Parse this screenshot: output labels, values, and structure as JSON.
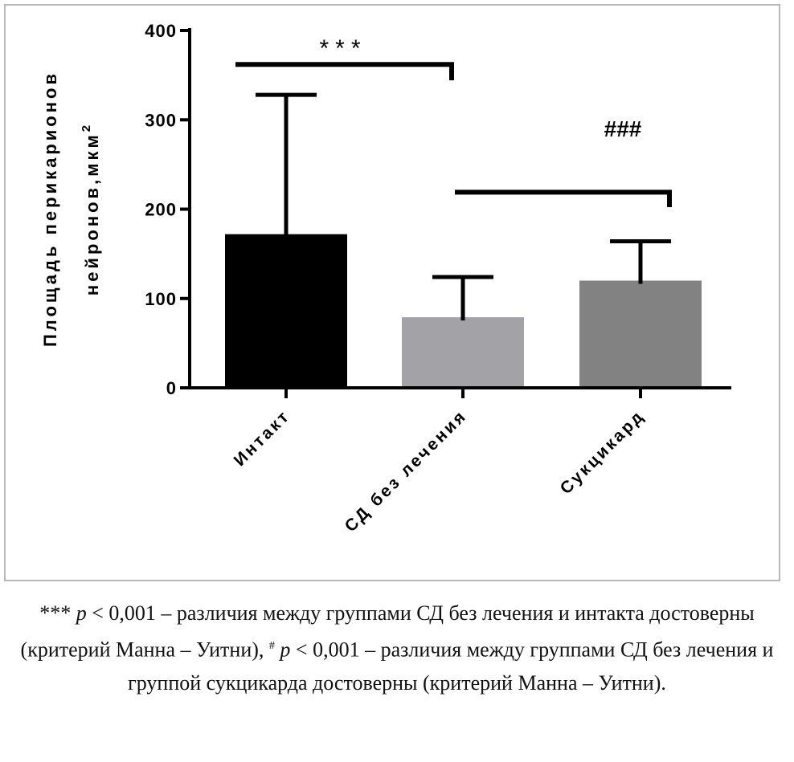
{
  "chart_data": {
    "type": "bar",
    "categories": [
      "Интакт",
      "СД без лечения",
      "Сукцикард"
    ],
    "values": [
      172,
      79,
      120
    ],
    "error_upper": [
      328,
      124,
      164
    ],
    "colors": [
      "#000000",
      "#a3a3a7",
      "#828282"
    ],
    "ylabel_line1": "Площадь перикарионов",
    "ylabel_line2": "нейронов,мкм",
    "ylabel_sup": "2",
    "ylim": [
      0,
      400
    ],
    "yticks": [
      "0",
      "100",
      "200",
      "300",
      "400"
    ],
    "grid": false,
    "annotations": [
      {
        "label": "***",
        "from": "Интакт",
        "to": "СД без лечения",
        "y": 362
      },
      {
        "label": "###",
        "from": "СД без лечения",
        "to": "Сукцикард",
        "y": 219
      }
    ]
  },
  "caption": {
    "part1": "*** ",
    "p1": "p",
    "part2": " < 0,001 – различия между группами СД без лечения и интакта достоверны (критерий Манна – Уитни), ",
    "hash": "#",
    "p2": "p",
    "part3": " < 0,001 – различия между группами СД без лечения и группой сукцикарда достоверны (критерий Манна – Уитни)."
  }
}
